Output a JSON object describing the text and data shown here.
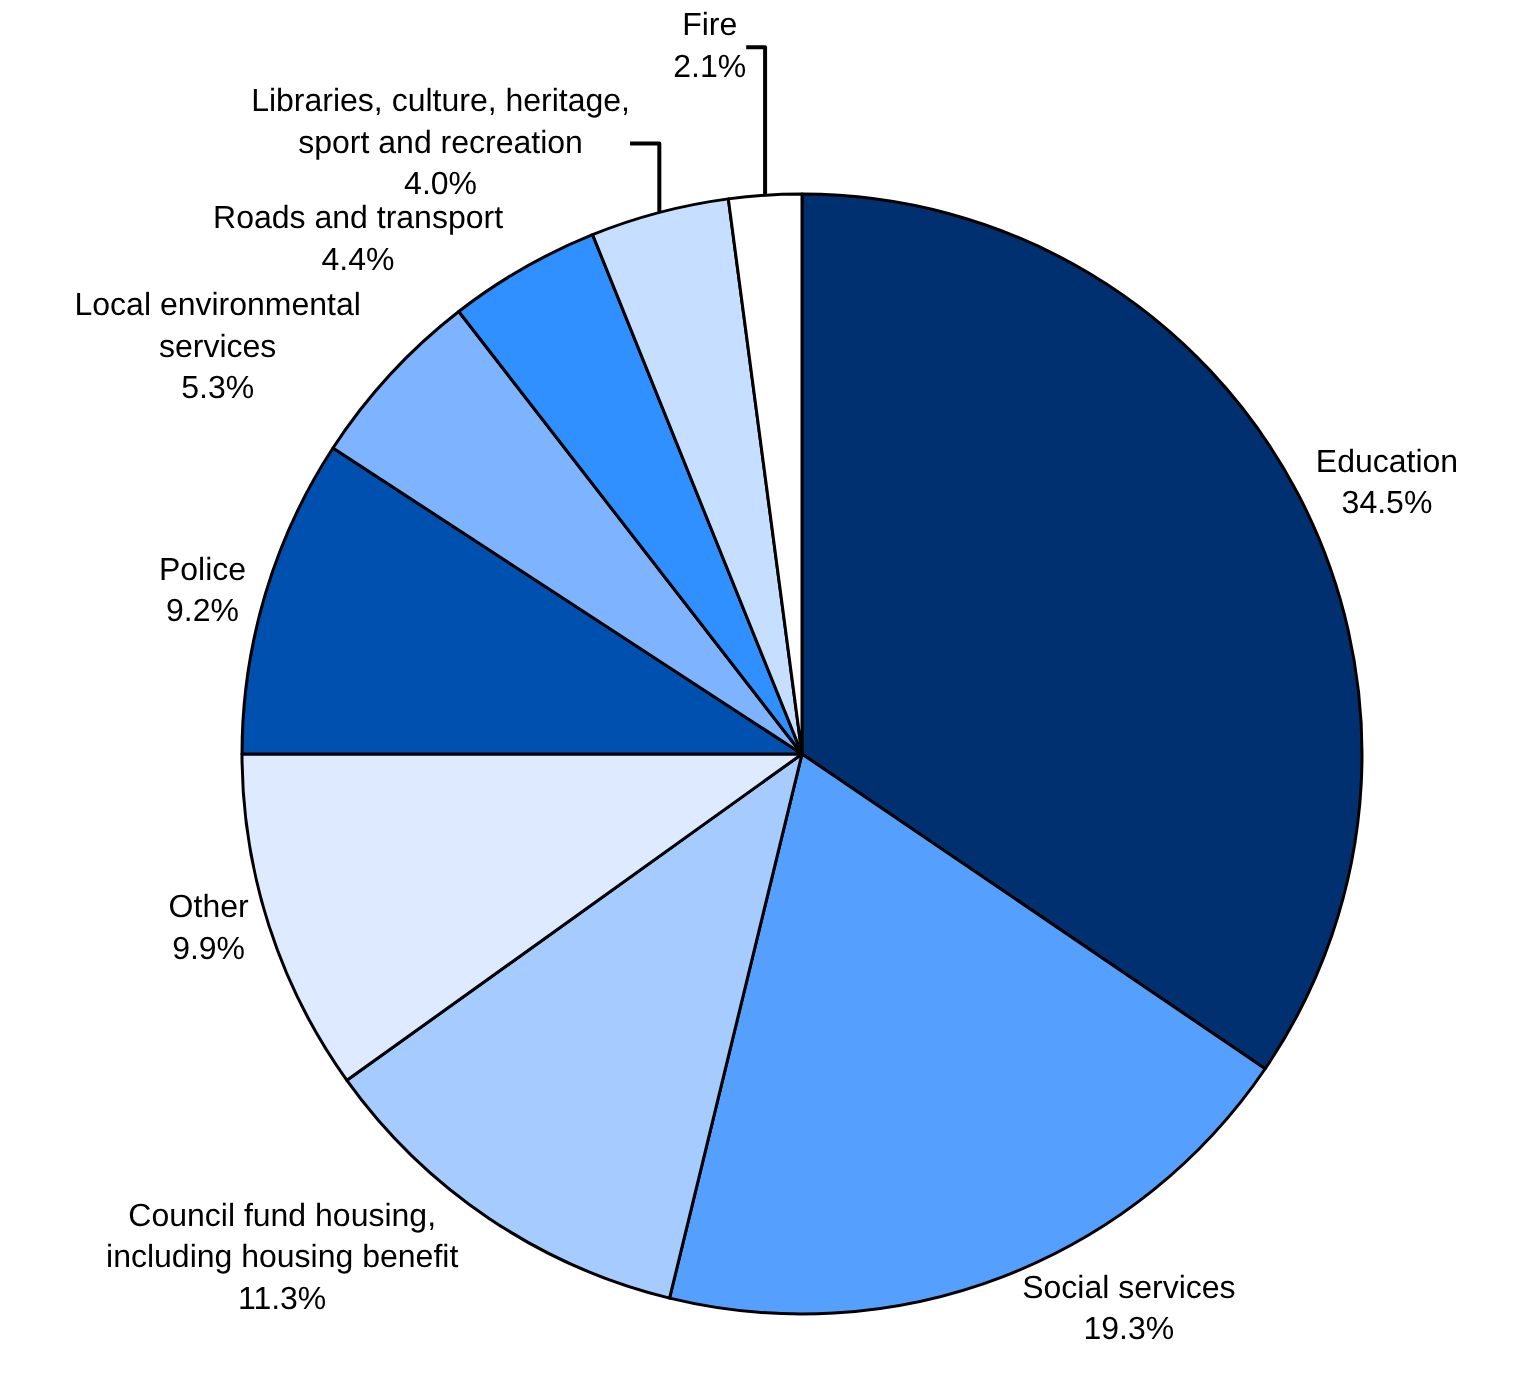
{
  "chart_data": {
    "type": "pie",
    "categories": [
      "Education",
      "Social services",
      "Council fund housing,\nincluding housing benefit",
      "Other",
      "Police",
      "Local environmental\nservices",
      "Roads and transport",
      "Libraries, culture, heritage,\nsport and recreation",
      "Fire"
    ],
    "values": [
      34.5,
      19.3,
      11.3,
      9.9,
      9.2,
      5.3,
      4.4,
      4.0,
      2.1
    ],
    "value_labels": [
      "34.5%",
      "19.3%",
      "11.3%",
      "9.9%",
      "9.2%",
      "5.3%",
      "4.4%",
      "4.0%",
      "2.1%"
    ],
    "colors": [
      "#003070",
      "#55a0ff",
      "#a6cbff",
      "#ddeaff",
      "#0050b0",
      "#7eb4ff",
      "#3090ff",
      "#c6deff",
      "#ffffff"
    ],
    "legend": false
  }
}
